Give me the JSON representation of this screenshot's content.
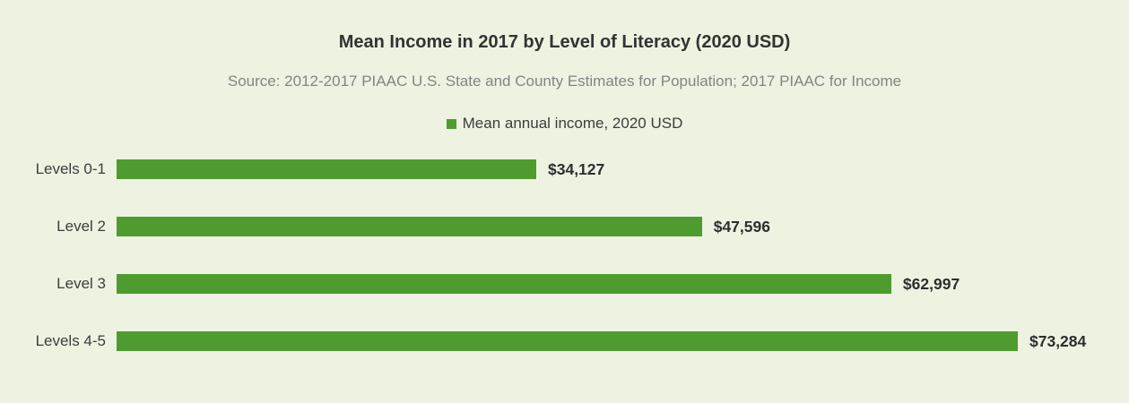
{
  "chart_data": {
    "type": "bar",
    "orientation": "horizontal",
    "title": "Mean Income in 2017 by Level of Literacy (2020 USD)",
    "subtitle": "Source: 2012-2017 PIAAC U.S. State and County Estimates for Population; 2017 PIAAC for Income",
    "legend": [
      {
        "label": "Mean annual income, 2020 USD",
        "color": "#4e9c30"
      }
    ],
    "legend_position": "top-center",
    "categories": [
      "Levels 0-1",
      "Level 2",
      "Level 3",
      "Levels 4-5"
    ],
    "series": [
      {
        "name": "Mean annual income, 2020 USD",
        "values": [
          34127,
          47596,
          62997,
          73284
        ],
        "value_labels": [
          "$34,127",
          "$47,596",
          "$62,997",
          "$73,284"
        ]
      }
    ],
    "value_axis": "hidden",
    "grid": false,
    "baseline": 0
  },
  "colors": {
    "background": "#edf3e0",
    "bar": "#4e9c30",
    "title_text": "#333333",
    "subtitle_text": "#848484",
    "category_text": "#3d3d3d",
    "value_text": "#2e2e2e"
  }
}
